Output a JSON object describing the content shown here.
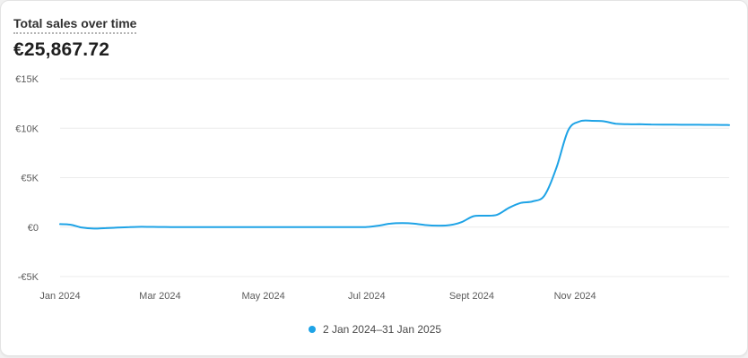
{
  "header": {
    "title": "Total sales over time",
    "total": "€25,867.72"
  },
  "colors": {
    "series": "#1ea3e6",
    "grid": "#ebebeb",
    "axis_text": "#5c5c5c"
  },
  "chart_data": {
    "type": "line",
    "title": "Total sales over time",
    "xlabel": "",
    "ylabel": "",
    "ylim": [
      -5000,
      15000
    ],
    "y_ticks": [
      15000,
      10000,
      5000,
      0,
      -5000
    ],
    "y_tick_labels": [
      "€15K",
      "€10K",
      "€5K",
      "€0",
      "-€5K"
    ],
    "x_ticks": [
      "2024-01-02",
      "2024-03-01",
      "2024-05-01",
      "2024-07-01",
      "2024-09-01",
      "2024-11-01"
    ],
    "x_tick_labels": [
      "Jan 2024",
      "Mar 2024",
      "May 2024",
      "Jul 2024",
      "Sept 2024",
      "Nov 2024"
    ],
    "grid": true,
    "legend_position": "bottom-center",
    "series": [
      {
        "name": "2 Jan 2024–31 Jan 2025",
        "x": [
          "2024-01-02",
          "2024-01-08",
          "2024-01-15",
          "2024-01-22",
          "2024-01-29",
          "2024-02-05",
          "2024-02-12",
          "2024-02-19",
          "2024-02-26",
          "2024-03-04",
          "2024-03-11",
          "2024-03-18",
          "2024-03-25",
          "2024-04-01",
          "2024-04-08",
          "2024-04-15",
          "2024-04-22",
          "2024-04-29",
          "2024-05-06",
          "2024-05-13",
          "2024-05-20",
          "2024-05-27",
          "2024-06-03",
          "2024-06-10",
          "2024-06-17",
          "2024-06-24",
          "2024-07-01",
          "2024-07-08",
          "2024-07-15",
          "2024-07-22",
          "2024-07-29",
          "2024-08-05",
          "2024-08-12",
          "2024-08-19",
          "2024-08-26",
          "2024-09-02",
          "2024-09-09",
          "2024-09-16",
          "2024-09-23",
          "2024-09-30",
          "2024-10-07",
          "2024-10-14",
          "2024-10-21",
          "2024-10-28",
          "2024-11-04",
          "2024-11-11",
          "2024-11-18",
          "2024-11-25",
          "2024-12-02",
          "2024-12-09",
          "2024-12-16",
          "2024-12-23",
          "2024-12-30",
          "2025-01-06",
          "2025-01-13",
          "2025-01-20",
          "2025-01-27",
          "2025-01-31"
        ],
        "values": [
          300,
          250,
          -50,
          -150,
          -100,
          -50,
          0,
          30,
          20,
          10,
          0,
          0,
          0,
          0,
          0,
          0,
          0,
          0,
          0,
          0,
          0,
          0,
          0,
          0,
          0,
          0,
          10,
          150,
          350,
          400,
          350,
          200,
          150,
          200,
          500,
          1100,
          1150,
          1250,
          1950,
          2450,
          2600,
          3200,
          6000,
          9800,
          10700,
          10750,
          10700,
          10450,
          10400,
          10400,
          10380,
          10370,
          10360,
          10350,
          10350,
          10340,
          10330,
          10320
        ]
      }
    ]
  }
}
